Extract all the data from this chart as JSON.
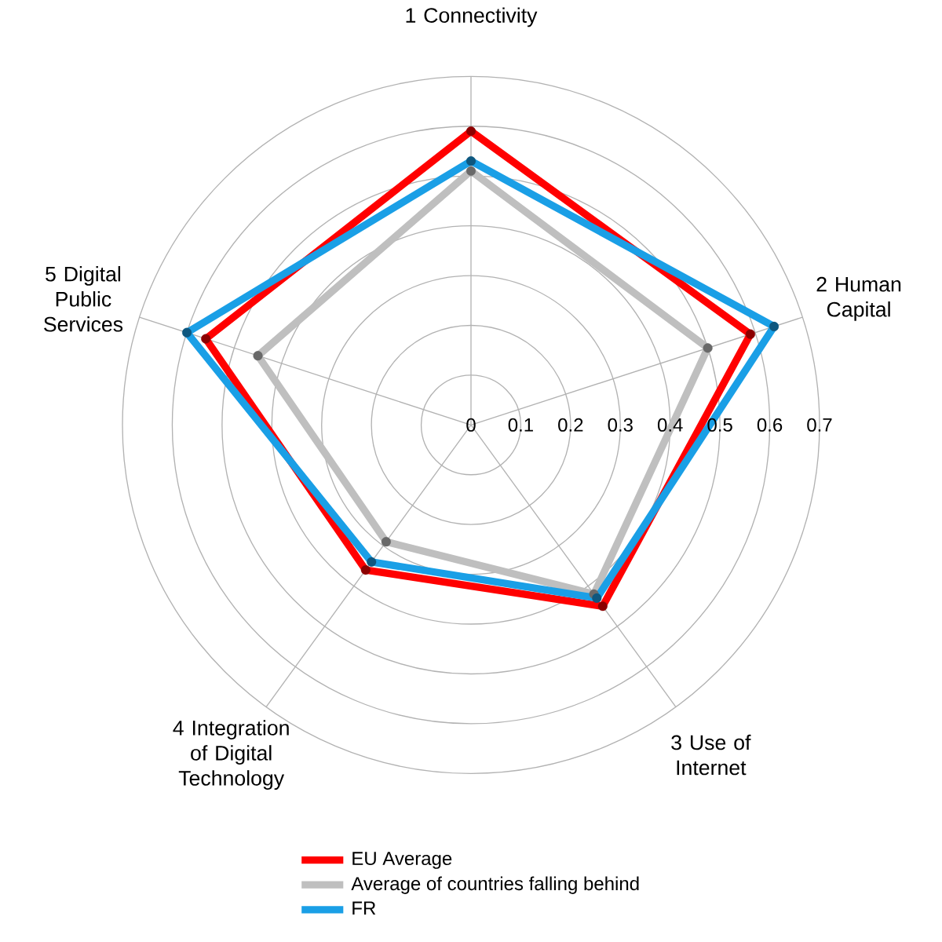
{
  "chart_data": {
    "type": "radar",
    "categories": [
      "1 Connectivity",
      "2 Human Capital",
      "3 Use of Internet",
      "4 Integration of Digital Technology",
      "5 Digital Public Services"
    ],
    "series": [
      {
        "name": "EU Average",
        "color": "#ff0000",
        "values": [
          0.59,
          0.59,
          0.45,
          0.36,
          0.56
        ]
      },
      {
        "name": "Average of countries falling behind",
        "color": "#bfbfbf",
        "values": [
          0.51,
          0.5,
          0.42,
          0.29,
          0.45
        ]
      },
      {
        "name": "FR",
        "color": "#1a9fe6",
        "values": [
          0.53,
          0.64,
          0.43,
          0.34,
          0.6
        ]
      }
    ],
    "ylim": [
      0,
      0.7
    ],
    "yticks": [
      0,
      0.1,
      0.2,
      0.3,
      0.4,
      0.5,
      0.6,
      0.7
    ],
    "grid": true,
    "legend": "bottom",
    "marker": "circle",
    "line_style": "solid"
  }
}
